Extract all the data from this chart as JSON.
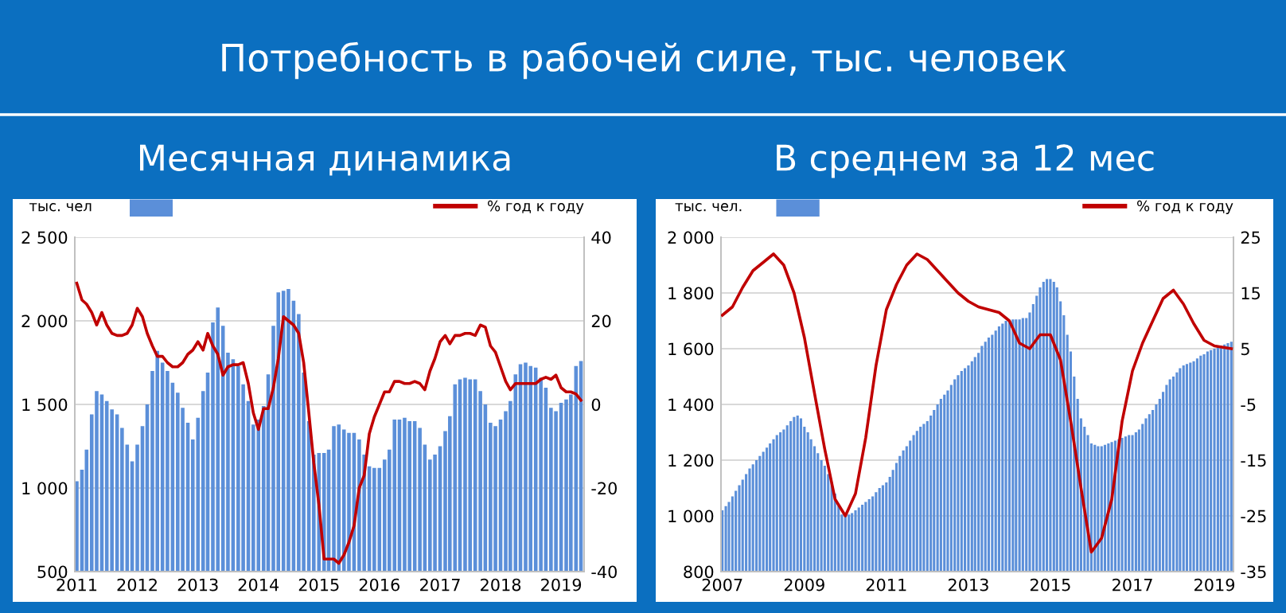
{
  "chart_data": [
    {
      "type": "bar",
      "title": "Потребность в рабочей силе, тыс. человек",
      "subtitle": "Месячная динамика",
      "ylabel": "тыс. чел",
      "series": [
        {
          "color": "#5b8fd9",
          "x": [
            "2011-01",
            "2011-02",
            "2011-03",
            "2011-04",
            "2011-05",
            "2011-06",
            "2011-07",
            "2011-08",
            "2011-09",
            "2011-10",
            "2011-11",
            "2011-12",
            "2012-01",
            "2012-02",
            "2012-03",
            "2012-04",
            "2012-05",
            "2012-06",
            "2012-07",
            "2012-08",
            "2012-09",
            "2012-10",
            "2012-11",
            "2012-12",
            "2013-01",
            "2013-02",
            "2013-03",
            "2013-04",
            "2013-05",
            "2013-06",
            "2013-07",
            "2013-08",
            "2013-09",
            "2013-10",
            "2013-11",
            "2013-12",
            "2014-01",
            "2014-02",
            "2014-03",
            "2014-04",
            "2014-05",
            "2014-06",
            "2014-07",
            "2014-08",
            "2014-09",
            "2014-10",
            "2014-11",
            "2014-12",
            "2015-01",
            "2015-02",
            "2015-03",
            "2015-04",
            "2015-05",
            "2015-06",
            "2015-07",
            "2015-08",
            "2015-09",
            "2015-10",
            "2015-11",
            "2015-12",
            "2016-01",
            "2016-02",
            "2016-03",
            "2016-04",
            "2016-05",
            "2016-06",
            "2016-07",
            "2016-08",
            "2016-09",
            "2016-10",
            "2016-11",
            "2016-12",
            "2017-01",
            "2017-02",
            "2017-03",
            "2017-04",
            "2017-05",
            "2017-06",
            "2017-07",
            "2017-08",
            "2017-09",
            "2017-10",
            "2017-11",
            "2017-12",
            "2018-01",
            "2018-02",
            "2018-03",
            "2018-04",
            "2018-05",
            "2018-06",
            "2018-07",
            "2018-08",
            "2018-09",
            "2018-10",
            "2018-11",
            "2018-12",
            "2019-01",
            "2019-02",
            "2019-03",
            "2019-04",
            "2019-05"
          ],
          "values": [
            1040,
            1110,
            1230,
            1440,
            1580,
            1560,
            1520,
            1470,
            1440,
            1360,
            1260,
            1160,
            1260,
            1370,
            1500,
            1700,
            1820,
            1750,
            1700,
            1630,
            1570,
            1480,
            1390,
            1290,
            1420,
            1580,
            1690,
            1990,
            2080,
            1970,
            1810,
            1770,
            1730,
            1620,
            1520,
            1380,
            1410,
            1490,
            1680,
            1970,
            2170,
            2180,
            2190,
            2120,
            2040,
            1690,
            1400,
            1200,
            1210,
            1210,
            1230,
            1370,
            1380,
            1350,
            1330,
            1330,
            1290,
            1200,
            1130,
            1120,
            1120,
            1170,
            1230,
            1410,
            1410,
            1420,
            1400,
            1400,
            1360,
            1260,
            1170,
            1200,
            1250,
            1340,
            1430,
            1620,
            1650,
            1660,
            1650,
            1650,
            1580,
            1500,
            1390,
            1370,
            1410,
            1460,
            1520,
            1680,
            1740,
            1750,
            1730,
            1720,
            1660,
            1600,
            1480,
            1460,
            1510,
            1530,
            1560,
            1730,
            1760
          ]
        },
        {
          "type": "line",
          "axis": "y2",
          "name": "% год к году",
          "color": "#c00000",
          "x": [
            "2011-01",
            "2011-02",
            "2011-03",
            "2011-04",
            "2011-05",
            "2011-06",
            "2011-07",
            "2011-08",
            "2011-09",
            "2011-10",
            "2011-11",
            "2011-12",
            "2012-01",
            "2012-02",
            "2012-03",
            "2012-04",
            "2012-05",
            "2012-06",
            "2012-07",
            "2012-08",
            "2012-09",
            "2012-10",
            "2012-11",
            "2012-12",
            "2013-01",
            "2013-02",
            "2013-03",
            "2013-04",
            "2013-05",
            "2013-06",
            "2013-07",
            "2013-08",
            "2013-09",
            "2013-10",
            "2013-11",
            "2013-12",
            "2014-01",
            "2014-02",
            "2014-03",
            "2014-04",
            "2014-05",
            "2014-06",
            "2014-07",
            "2014-08",
            "2014-09",
            "2014-10",
            "2014-11",
            "2014-12",
            "2015-01",
            "2015-02",
            "2015-03",
            "2015-04",
            "2015-05",
            "2015-06",
            "2015-07",
            "2015-08",
            "2015-09",
            "2015-10",
            "2015-11",
            "2015-12",
            "2016-01",
            "2016-02",
            "2016-03",
            "2016-04",
            "2016-05",
            "2016-06",
            "2016-07",
            "2016-08",
            "2016-09",
            "2016-10",
            "2016-11",
            "2016-12",
            "2017-01",
            "2017-02",
            "2017-03",
            "2017-04",
            "2017-05",
            "2017-06",
            "2017-07",
            "2017-08",
            "2017-09",
            "2017-10",
            "2017-11",
            "2017-12",
            "2018-01",
            "2018-02",
            "2018-03",
            "2018-04",
            "2018-05",
            "2018-06",
            "2018-07",
            "2018-08",
            "2018-09",
            "2018-10",
            "2018-11",
            "2018-12",
            "2019-01",
            "2019-02",
            "2019-03",
            "2019-04",
            "2019-05"
          ],
          "values": [
            29,
            25,
            24,
            22,
            19,
            22,
            19,
            17,
            16.5,
            16.5,
            17,
            19,
            23,
            21,
            17,
            14,
            11.5,
            11.5,
            10,
            9,
            9,
            10,
            12,
            13,
            15,
            13,
            17,
            14,
            12,
            7,
            9,
            9.5,
            9.5,
            10,
            5,
            -2,
            -6,
            -1,
            -1,
            4,
            11,
            21,
            20,
            19,
            17,
            10,
            -2,
            -14,
            -24,
            -37,
            -37,
            -37,
            -38,
            -36,
            -33,
            -29,
            -20,
            -17,
            -7,
            -3,
            0,
            3,
            3,
            5.5,
            5.5,
            5,
            5,
            5.5,
            5,
            3.5,
            8,
            11,
            15,
            16.5,
            14.5,
            16.5,
            16.5,
            17,
            17,
            16.5,
            19,
            18.5,
            14,
            12.5,
            9,
            5.5,
            3.5,
            5,
            5,
            5,
            5,
            5,
            6,
            6.5,
            6,
            7,
            4,
            3,
            3,
            2.5,
            1
          ]
        }
      ],
      "xlim": [
        "2010-12-20",
        "2019-05-20"
      ],
      "xticks": [
        {
          "value": "2011",
          "label": "2011"
        },
        {
          "value": "2012",
          "label": "2012"
        },
        {
          "value": "2013",
          "label": "2013"
        },
        {
          "value": "2014",
          "label": "2014"
        },
        {
          "value": "2015",
          "label": "2015"
        },
        {
          "value": "2016",
          "label": "2016"
        },
        {
          "value": "2017",
          "label": "2017"
        },
        {
          "value": "2018",
          "label": "2018"
        },
        {
          "value": "2019",
          "label": "2019"
        }
      ],
      "ylim": [
        500,
        2500
      ],
      "yticks": [
        500,
        {
          "value": 1000,
          "label": "1 000"
        },
        {
          "value": 1500,
          "label": "1 500"
        },
        {
          "value": 2000,
          "label": "2 000"
        },
        {
          "value": 2500,
          "label": "2 500"
        }
      ],
      "y2lim": [
        -40,
        40
      ],
      "y2ticks": [
        -40,
        -20,
        0,
        20,
        40
      ],
      "grid": "y",
      "legend": "top"
    },
    {
      "type": "bar",
      "subtitle": "В среднем за 12 мес",
      "ylabel": "тыс. чел.",
      "series": [
        {
          "color": "#5b8fd9",
          "x": [
            "2007-01",
            "2007-02",
            "2007-03",
            "2007-04",
            "2007-05",
            "2007-06",
            "2007-07",
            "2007-08",
            "2007-09",
            "2007-10",
            "2007-11",
            "2007-12",
            "2008-01",
            "2008-02",
            "2008-03",
            "2008-04",
            "2008-05",
            "2008-06",
            "2008-07",
            "2008-08",
            "2008-09",
            "2008-10",
            "2008-11",
            "2008-12",
            "2009-01",
            "2009-02",
            "2009-03",
            "2009-04",
            "2009-05",
            "2009-06",
            "2009-07",
            "2009-08",
            "2009-09",
            "2009-10",
            "2009-11",
            "2009-12",
            "2010-01",
            "2010-02",
            "2010-03",
            "2010-04",
            "2010-05",
            "2010-06",
            "2010-07",
            "2010-08",
            "2010-09",
            "2010-10",
            "2010-11",
            "2010-12",
            "2011-01",
            "2011-02",
            "2011-03",
            "2011-04",
            "2011-05",
            "2011-06",
            "2011-07",
            "2011-08",
            "2011-09",
            "2011-10",
            "2011-11",
            "2011-12",
            "2012-01",
            "2012-02",
            "2012-03",
            "2012-04",
            "2012-05",
            "2012-06",
            "2012-07",
            "2012-08",
            "2012-09",
            "2012-10",
            "2012-11",
            "2012-12",
            "2013-01",
            "2013-02",
            "2013-03",
            "2013-04",
            "2013-05",
            "2013-06",
            "2013-07",
            "2013-08",
            "2013-09",
            "2013-10",
            "2013-11",
            "2013-12",
            "2014-01",
            "2014-02",
            "2014-03",
            "2014-04",
            "2014-05",
            "2014-06",
            "2014-07",
            "2014-08",
            "2014-09",
            "2014-10",
            "2014-11",
            "2014-12",
            "2015-01",
            "2015-02",
            "2015-03",
            "2015-04",
            "2015-05",
            "2015-06",
            "2015-07",
            "2015-08",
            "2015-09",
            "2015-10",
            "2015-11",
            "2015-12",
            "2016-01",
            "2016-02",
            "2016-03",
            "2016-04",
            "2016-05",
            "2016-06",
            "2016-07",
            "2016-08",
            "2016-09",
            "2016-10",
            "2016-11",
            "2016-12",
            "2017-01",
            "2017-02",
            "2017-03",
            "2017-04",
            "2017-05",
            "2017-06",
            "2017-07",
            "2017-08",
            "2017-09",
            "2017-10",
            "2017-11",
            "2017-12",
            "2018-01",
            "2018-02",
            "2018-03",
            "2018-04",
            "2018-05",
            "2018-06",
            "2018-07",
            "2018-08",
            "2018-09",
            "2018-10",
            "2018-11",
            "2018-12",
            "2019-01",
            "2019-02",
            "2019-03",
            "2019-04",
            "2019-05",
            "2019-06"
          ],
          "values": [
            1020,
            1035,
            1050,
            1070,
            1090,
            1110,
            1130,
            1150,
            1170,
            1185,
            1200,
            1215,
            1230,
            1245,
            1260,
            1275,
            1290,
            1300,
            1310,
            1325,
            1340,
            1355,
            1360,
            1350,
            1320,
            1300,
            1275,
            1250,
            1225,
            1200,
            1180,
            1150,
            1120,
            1080,
            1040,
            1005,
            1000,
            1005,
            1010,
            1020,
            1030,
            1040,
            1050,
            1060,
            1070,
            1085,
            1100,
            1110,
            1120,
            1140,
            1165,
            1190,
            1215,
            1235,
            1250,
            1270,
            1290,
            1305,
            1320,
            1330,
            1340,
            1360,
            1380,
            1400,
            1420,
            1435,
            1450,
            1470,
            1490,
            1505,
            1520,
            1530,
            1540,
            1555,
            1570,
            1585,
            1610,
            1625,
            1640,
            1650,
            1665,
            1680,
            1690,
            1700,
            1700,
            1705,
            1705,
            1705,
            1710,
            1710,
            1730,
            1760,
            1790,
            1820,
            1840,
            1850,
            1850,
            1840,
            1820,
            1770,
            1720,
            1650,
            1590,
            1500,
            1420,
            1350,
            1320,
            1290,
            1260,
            1255,
            1250,
            1250,
            1255,
            1260,
            1265,
            1270,
            1275,
            1280,
            1285,
            1290,
            1290,
            1300,
            1310,
            1330,
            1350,
            1365,
            1380,
            1400,
            1420,
            1445,
            1470,
            1490,
            1500,
            1515,
            1530,
            1540,
            1545,
            1550,
            1555,
            1565,
            1575,
            1580,
            1590,
            1595,
            1600,
            1605,
            1610,
            1615,
            1620,
            1625
          ]
        },
        {
          "type": "line",
          "axis": "y2",
          "name": "% год к году",
          "color": "#c00000",
          "x": [
            "2007-01",
            "2007-04",
            "2007-07",
            "2007-10",
            "2008-01",
            "2008-04",
            "2008-07",
            "2008-10",
            "2009-01",
            "2009-04",
            "2009-07",
            "2009-10",
            "2010-01",
            "2010-04",
            "2010-07",
            "2010-10",
            "2011-01",
            "2011-04",
            "2011-07",
            "2011-10",
            "2012-01",
            "2012-04",
            "2012-07",
            "2012-10",
            "2013-01",
            "2013-04",
            "2013-07",
            "2013-10",
            "2014-01",
            "2014-04",
            "2014-07",
            "2014-10",
            "2015-01",
            "2015-04",
            "2015-07",
            "2015-10",
            "2016-01",
            "2016-04",
            "2016-07",
            "2016-10",
            "2017-01",
            "2017-04",
            "2017-07",
            "2017-10",
            "2018-01",
            "2018-04",
            "2018-07",
            "2018-10",
            "2019-01",
            "2019-06"
          ],
          "values": [
            11,
            12.5,
            16,
            19,
            20.5,
            22,
            20,
            15,
            7,
            -3,
            -13,
            -22,
            -25,
            -21,
            -11,
            2,
            12,
            16.5,
            20,
            22,
            21,
            19,
            17,
            15,
            13.5,
            12.5,
            12,
            11.5,
            10,
            6,
            5,
            7.5,
            7.5,
            3,
            -8,
            -20,
            -31.5,
            -29,
            -22,
            -8,
            1,
            6,
            10,
            14,
            15.5,
            13,
            9.5,
            6.5,
            5.5,
            5
          ]
        }
      ],
      "xlim": [
        "2006-12-20",
        "2019-06-20"
      ],
      "xticks": [
        {
          "value": "2007",
          "label": "2007"
        },
        {
          "value": "2009",
          "label": "2009"
        },
        {
          "value": "2011",
          "label": "2011"
        },
        {
          "value": "2013",
          "label": "2013"
        },
        {
          "value": "2015",
          "label": "2015"
        },
        {
          "value": "2017",
          "label": "2017"
        },
        {
          "value": "2019",
          "label": "2019"
        }
      ],
      "ylim": [
        800,
        2000
      ],
      "yticks": [
        800,
        {
          "value": 1000,
          "label": "1 000"
        },
        {
          "value": 1200,
          "label": "1 200"
        },
        {
          "value": 1400,
          "label": "1 400"
        },
        {
          "value": 1600,
          "label": "1 600"
        },
        {
          "value": 1800,
          "label": "1 800"
        },
        {
          "value": 2000,
          "label": "2 000"
        }
      ],
      "y2lim": [
        -35,
        25
      ],
      "y2ticks": [
        -35,
        -25,
        -15,
        -5,
        5,
        15,
        25
      ],
      "grid": "y",
      "legend": "top"
    }
  ]
}
